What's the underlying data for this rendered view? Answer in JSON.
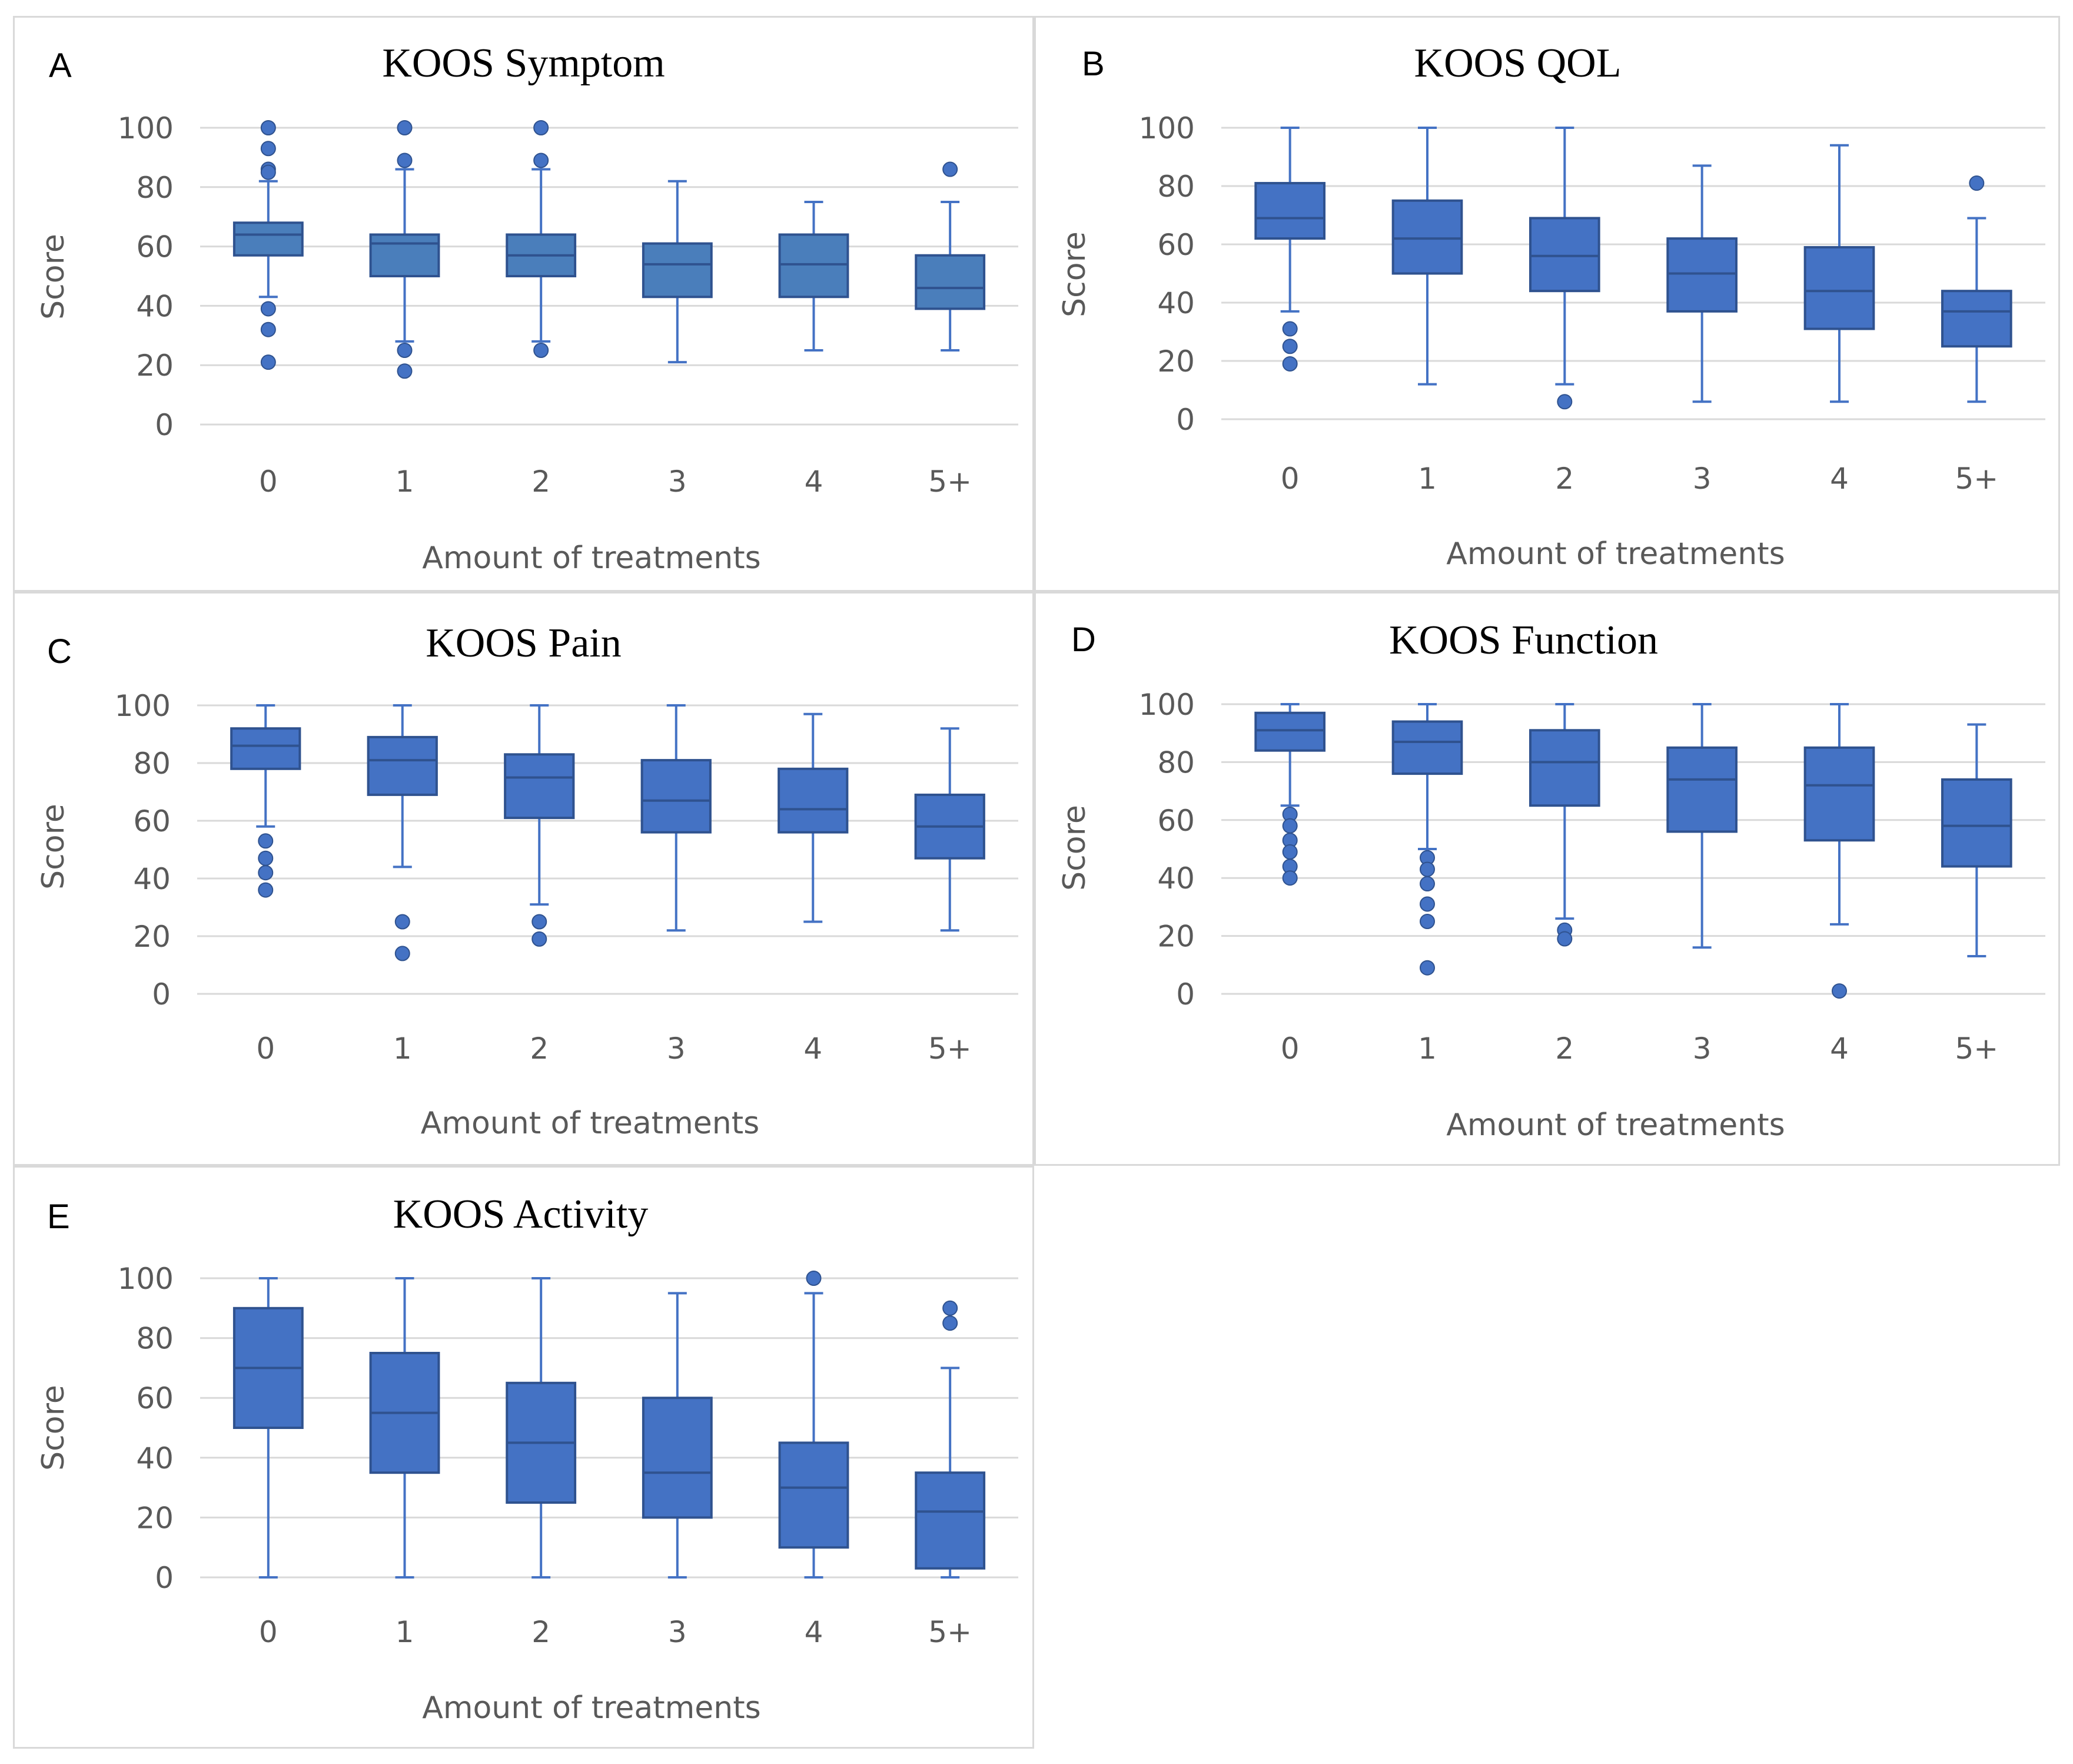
{
  "colors": {
    "box_fill": "#4472c4",
    "box_fill_symptom": "#4a7ebb",
    "box_stroke": "#2f528f",
    "grid": "#d9d9d9",
    "text": "#595959"
  },
  "chart_data": [
    {
      "type": "box",
      "panel": "A",
      "title": "KOOS Symptom",
      "xlabel": "Amount of treatments",
      "ylabel": "Score",
      "ylim": [
        0,
        100
      ],
      "yticks": [
        "0",
        "20",
        "40",
        "60",
        "80",
        "100"
      ],
      "categories": [
        "0",
        "1",
        "2",
        "3",
        "4",
        "5+"
      ],
      "boxes": [
        {
          "min": 43,
          "q1": 57,
          "median": 64,
          "q3": 68,
          "max": 82,
          "outliers": [
            100,
            93,
            86,
            85,
            39,
            32,
            21
          ]
        },
        {
          "min": 28,
          "q1": 50,
          "median": 61,
          "q3": 64,
          "max": 86,
          "outliers": [
            100,
            89,
            25,
            18
          ]
        },
        {
          "min": 28,
          "q1": 50,
          "median": 57,
          "q3": 64,
          "max": 86,
          "outliers": [
            100,
            89,
            25
          ]
        },
        {
          "min": 21,
          "q1": 43,
          "median": 54,
          "q3": 61,
          "max": 82,
          "outliers": []
        },
        {
          "min": 25,
          "q1": 43,
          "median": 54,
          "q3": 64,
          "max": 75,
          "outliers": []
        },
        {
          "min": 25,
          "q1": 39,
          "median": 46,
          "q3": 57,
          "max": 75,
          "outliers": [
            86
          ]
        }
      ]
    },
    {
      "type": "box",
      "panel": "B",
      "title": "KOOS QOL",
      "xlabel": "Amount of treatments",
      "ylabel": "Score",
      "ylim": [
        0,
        100
      ],
      "yticks": [
        "0",
        "20",
        "40",
        "60",
        "80",
        "100"
      ],
      "categories": [
        "0",
        "1",
        "2",
        "3",
        "4",
        "5+"
      ],
      "boxes": [
        {
          "min": 37,
          "q1": 62,
          "median": 69,
          "q3": 81,
          "max": 100,
          "outliers": [
            31,
            25,
            19
          ]
        },
        {
          "min": 12,
          "q1": 50,
          "median": 62,
          "q3": 75,
          "max": 100,
          "outliers": []
        },
        {
          "min": 12,
          "q1": 44,
          "median": 56,
          "q3": 69,
          "max": 100,
          "outliers": [
            6
          ]
        },
        {
          "min": 6,
          "q1": 37,
          "median": 50,
          "q3": 62,
          "max": 87,
          "outliers": []
        },
        {
          "min": 6,
          "q1": 31,
          "median": 44,
          "q3": 59,
          "max": 94,
          "outliers": []
        },
        {
          "min": 6,
          "q1": 25,
          "median": 37,
          "q3": 44,
          "max": 69,
          "outliers": [
            81
          ]
        }
      ]
    },
    {
      "type": "box",
      "panel": "C",
      "title": "KOOS Pain",
      "xlabel": "Amount of treatments",
      "ylabel": "Score",
      "ylim": [
        0,
        100
      ],
      "yticks": [
        "0",
        "20",
        "40",
        "60",
        "80",
        "100"
      ],
      "categories": [
        "0",
        "1",
        "2",
        "3",
        "4",
        "5+"
      ],
      "boxes": [
        {
          "min": 58,
          "q1": 78,
          "median": 86,
          "q3": 92,
          "max": 100,
          "outliers": [
            53,
            47,
            42,
            36
          ]
        },
        {
          "min": 44,
          "q1": 69,
          "median": 81,
          "q3": 89,
          "max": 100,
          "outliers": [
            25,
            14
          ]
        },
        {
          "min": 31,
          "q1": 61,
          "median": 75,
          "q3": 83,
          "max": 100,
          "outliers": [
            25,
            19
          ]
        },
        {
          "min": 22,
          "q1": 56,
          "median": 67,
          "q3": 81,
          "max": 100,
          "outliers": []
        },
        {
          "min": 25,
          "q1": 56,
          "median": 64,
          "q3": 78,
          "max": 97,
          "outliers": []
        },
        {
          "min": 22,
          "q1": 47,
          "median": 58,
          "q3": 69,
          "max": 92,
          "outliers": []
        }
      ]
    },
    {
      "type": "box",
      "panel": "D",
      "title": "KOOS Function",
      "xlabel": "Amount of treatments",
      "ylabel": "Score",
      "ylim": [
        0,
        100
      ],
      "yticks": [
        "0",
        "20",
        "40",
        "60",
        "80",
        "100"
      ],
      "categories": [
        "0",
        "1",
        "2",
        "3",
        "4",
        "5+"
      ],
      "boxes": [
        {
          "min": 65,
          "q1": 84,
          "median": 91,
          "q3": 97,
          "max": 100,
          "outliers": [
            62,
            58,
            53,
            49,
            44,
            40
          ]
        },
        {
          "min": 50,
          "q1": 76,
          "median": 87,
          "q3": 94,
          "max": 100,
          "outliers": [
            47,
            43,
            38,
            31,
            25,
            9
          ]
        },
        {
          "min": 26,
          "q1": 65,
          "median": 80,
          "q3": 91,
          "max": 100,
          "outliers": [
            22,
            19
          ]
        },
        {
          "min": 16,
          "q1": 56,
          "median": 74,
          "q3": 85,
          "max": 100,
          "outliers": []
        },
        {
          "min": 24,
          "q1": 53,
          "median": 72,
          "q3": 85,
          "max": 100,
          "outliers": [
            1
          ]
        },
        {
          "min": 13,
          "q1": 44,
          "median": 58,
          "q3": 74,
          "max": 93,
          "outliers": []
        }
      ]
    },
    {
      "type": "box",
      "panel": "E",
      "title": "KOOS Activity",
      "xlabel": "Amount of treatments",
      "ylabel": "Score",
      "ylim": [
        0,
        100
      ],
      "yticks": [
        "0",
        "20",
        "40",
        "60",
        "80",
        "100"
      ],
      "categories": [
        "0",
        "1",
        "2",
        "3",
        "4",
        "5+"
      ],
      "boxes": [
        {
          "min": 0,
          "q1": 50,
          "median": 70,
          "q3": 90,
          "max": 100,
          "outliers": []
        },
        {
          "min": 0,
          "q1": 35,
          "median": 55,
          "q3": 75,
          "max": 100,
          "outliers": []
        },
        {
          "min": 0,
          "q1": 25,
          "median": 45,
          "q3": 65,
          "max": 100,
          "outliers": []
        },
        {
          "min": 0,
          "q1": 20,
          "median": 35,
          "q3": 60,
          "max": 95,
          "outliers": []
        },
        {
          "min": 0,
          "q1": 10,
          "median": 30,
          "q3": 45,
          "max": 95,
          "outliers": [
            100
          ]
        },
        {
          "min": 0,
          "q1": 3,
          "median": 22,
          "q3": 35,
          "max": 70,
          "outliers": [
            90,
            85
          ]
        }
      ]
    }
  ]
}
